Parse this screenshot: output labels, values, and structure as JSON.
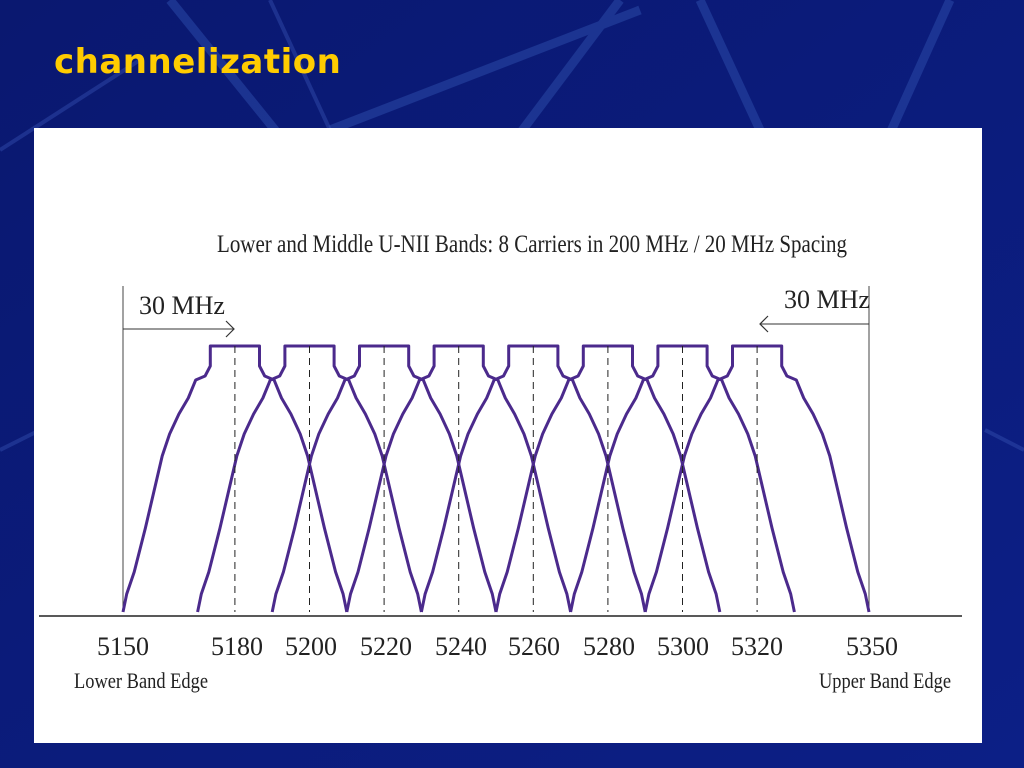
{
  "slide": {
    "title": "channelization"
  },
  "diagram": {
    "heading": "Lower and Middle U-NII Bands: 8 Carriers in 200 MHz / 20 MHz Spacing",
    "guard_left_label": "30 MHz",
    "guard_right_label": "30 MHz",
    "frequencies": [
      "5150",
      "5180",
      "5200",
      "5220",
      "5240",
      "5260",
      "5280",
      "5300",
      "5320",
      "5350"
    ],
    "lower_edge_label": "Lower Band Edge",
    "upper_edge_label": "Upper Band Edge",
    "band_start": 5150,
    "band_end": 5350,
    "carrier_centers": [
      5180,
      5200,
      5220,
      5240,
      5260,
      5280,
      5300,
      5320
    ],
    "carrier_color": "#4b2a8c"
  },
  "colors": {
    "background": "#0b1a7a",
    "title": "#ffcc00",
    "panel": "#ffffff"
  }
}
